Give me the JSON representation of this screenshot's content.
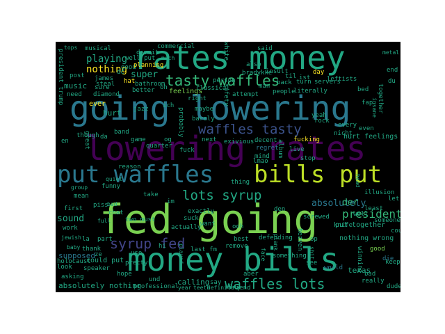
{
  "words": [
    {
      "text": "fed going",
      "color": "#7ad151"
    },
    {
      "text": "money bills",
      "color": "#22a884"
    },
    {
      "text": "going lowering",
      "color": "#2a788e"
    },
    {
      "text": "lowering rates",
      "color": "#440154"
    },
    {
      "text": "rates money",
      "color": "#22a884"
    },
    {
      "text": "put waffles",
      "color": "#2a788e"
    },
    {
      "text": "bills put",
      "color": "#bddf26"
    },
    {
      "text": "tasty waffles",
      "color": "#35b779"
    },
    {
      "text": "waffles tasty",
      "color": "#3b528b"
    },
    {
      "text": "waffles lots",
      "color": "#22a884"
    },
    {
      "text": "lots syrup",
      "color": "#22a884"
    },
    {
      "text": "syrup fed",
      "color": "#414487"
    },
    {
      "text": "president",
      "color": "#35b779"
    },
    {
      "text": "absolutely",
      "color": "#2a788e"
    },
    {
      "text": "nothing",
      "color": "#fde725"
    },
    {
      "text": "playing",
      "color": "#22a884"
    },
    {
      "text": "super",
      "color": "#22a884"
    },
    {
      "text": "music",
      "color": "#22a884"
    },
    {
      "text": "sound",
      "color": "#22a884"
    },
    {
      "text": "der",
      "color": "#35b779"
    },
    {
      "text": "ever",
      "color": "#fde725"
    },
    {
      "text": "hurt",
      "color": "#22a884"
    },
    {
      "text": "hurt feelings",
      "color": "#22a884"
    },
    {
      "text": "feelings",
      "color": "#7ad151"
    },
    {
      "text": "absolutely nothing",
      "color": "#22a884"
    },
    {
      "text": "calling",
      "color": "#22a884"
    },
    {
      "text": "supposed",
      "color": "#2a788e"
    },
    {
      "text": "could put",
      "color": "#22a884"
    },
    {
      "text": "put together",
      "color": "#22a884"
    },
    {
      "text": "nothing wrong",
      "color": "#22a884"
    },
    {
      "text": "texas",
      "color": "#22a884"
    },
    {
      "text": "good",
      "color": "#7ad151"
    },
    {
      "text": "die",
      "color": "#2a788e"
    },
    {
      "text": "world",
      "color": "#2a788e"
    },
    {
      "text": "see",
      "color": "#22a884"
    },
    {
      "text": "aber",
      "color": "#22a884"
    },
    {
      "text": "friend",
      "color": "#22a884"
    },
    {
      "text": "best",
      "color": "#22a884"
    },
    {
      "text": "ooh",
      "color": "#22a884"
    },
    {
      "text": "thing",
      "color": "#22a884"
    },
    {
      "text": "want",
      "color": "#22a884"
    },
    {
      "text": "mind",
      "color": "#22a884"
    },
    {
      "text": "stop",
      "color": "#22a884"
    },
    {
      "text": "live",
      "color": "#22a884"
    },
    {
      "text": "regret",
      "color": "#2a788e"
    },
    {
      "text": "fuck",
      "color": "#22a884"
    },
    {
      "text": "take",
      "color": "#22a884"
    },
    {
      "text": "chat",
      "color": "#22a884"
    },
    {
      "text": "mean",
      "color": "#22a884"
    },
    {
      "text": "work",
      "color": "#22a884"
    },
    {
      "text": "first",
      "color": "#22a884"
    },
    {
      "text": "piss",
      "color": "#22a884"
    },
    {
      "text": "use",
      "color": "#22a884"
    },
    {
      "text": "part",
      "color": "#22a884"
    },
    {
      "text": "look",
      "color": "#22a884"
    },
    {
      "text": "thank",
      "color": "#22a884"
    },
    {
      "text": "hope",
      "color": "#22a884"
    },
    {
      "text": "und",
      "color": "#22a884"
    },
    {
      "text": "say",
      "color": "#22a884"
    },
    {
      "text": "last fm",
      "color": "#22a884"
    },
    {
      "text": "exactly",
      "color": "#22a884"
    },
    {
      "text": "actually",
      "color": "#22a884"
    },
    {
      "text": "holocaust",
      "color": "#22a884"
    },
    {
      "text": "speaker",
      "color": "#22a884"
    },
    {
      "text": "asking",
      "color": "#22a884"
    },
    {
      "text": "pretty",
      "color": "#22a884"
    },
    {
      "text": "professional",
      "color": "#22a884"
    },
    {
      "text": "sure",
      "color": "#22a884"
    },
    {
      "text": "good",
      "color": "#22a884"
    },
    {
      "text": "game",
      "color": "#22a884"
    },
    {
      "text": "band",
      "color": "#22a884"
    },
    {
      "text": "jazz",
      "color": "#22a884"
    },
    {
      "text": "og",
      "color": "#22a884"
    },
    {
      "text": "though",
      "color": "#22a884"
    },
    {
      "text": "quarter",
      "color": "#22a884"
    },
    {
      "text": "hat",
      "color": "#fde725"
    },
    {
      "text": "better",
      "color": "#22a884"
    },
    {
      "text": "right",
      "color": "#22a884"
    },
    {
      "text": "maybe",
      "color": "#22a884"
    },
    {
      "text": "barely",
      "color": "#22a884"
    },
    {
      "text": "need",
      "color": "#22a884"
    },
    {
      "text": "diamond",
      "color": "#22a884"
    },
    {
      "text": "james",
      "color": "#22a884"
    },
    {
      "text": "steal",
      "color": "#22a884"
    },
    {
      "text": "bathroom",
      "color": "#22a884"
    },
    {
      "text": "post",
      "color": "#22a884"
    },
    {
      "text": "well put",
      "color": "#22a884"
    },
    {
      "text": "planning",
      "color": "#fde725"
    },
    {
      "text": "musical",
      "color": "#22a884"
    },
    {
      "text": "dammit",
      "color": "#22a884"
    },
    {
      "text": "commercial",
      "color": "#22a884"
    },
    {
      "text": "said",
      "color": "#22a884"
    },
    {
      "text": "also",
      "color": "#22a884"
    },
    {
      "text": "insult",
      "color": "#22a884"
    },
    {
      "text": "bradykke",
      "color": "#22a884"
    },
    {
      "text": "classical",
      "color": "#22a884"
    },
    {
      "text": "person",
      "color": "#22a884"
    },
    {
      "text": "man",
      "color": "#22a884"
    },
    {
      "text": "attempt",
      "color": "#22a884"
    },
    {
      "text": "day",
      "color": "#fde725"
    },
    {
      "text": "til",
      "color": "#22a884"
    },
    {
      "text": "ist",
      "color": "#22a884"
    },
    {
      "text": "servers",
      "color": "#22a884"
    },
    {
      "text": "turn",
      "color": "#22a884"
    },
    {
      "text": "back",
      "color": "#22a884"
    },
    {
      "text": "leftists",
      "color": "#22a884"
    },
    {
      "text": "literally",
      "color": "#22a884"
    },
    {
      "text": "people",
      "color": "#22a884"
    },
    {
      "text": "bed",
      "color": "#22a884"
    },
    {
      "text": "fap",
      "color": "#22a884"
    },
    {
      "text": "yeah",
      "color": "#22a884"
    },
    {
      "text": "rock",
      "color": "#22a884"
    },
    {
      "text": "every",
      "color": "#22a884"
    },
    {
      "text": "nicht",
      "color": "#22a884"
    },
    {
      "text": "even",
      "color": "#22a884"
    },
    {
      "text": "fucking",
      "color": "#fde725"
    },
    {
      "text": "decent",
      "color": "#22a884"
    },
    {
      "text": "next",
      "color": "#22a884"
    },
    {
      "text": "exivious",
      "color": "#22a884"
    },
    {
      "text": "lmao",
      "color": "#22a884"
    },
    {
      "text": "illusion",
      "color": "#22a884"
    },
    {
      "text": "let",
      "color": "#22a884"
    },
    {
      "text": "least",
      "color": "#22a884"
    },
    {
      "text": "someone",
      "color": "#22a884"
    },
    {
      "text": "screwed",
      "color": "#22a884"
    },
    {
      "text": "knife",
      "color": "#22a884"
    },
    {
      "text": "well",
      "color": "#22a884"
    },
    {
      "text": "den",
      "color": "#22a884"
    },
    {
      "text": "op",
      "color": "#22a884"
    },
    {
      "text": "defending",
      "color": "#22a884"
    },
    {
      "text": "remove",
      "color": "#22a884"
    },
    {
      "text": "something",
      "color": "#22a884"
    },
    {
      "text": "keep",
      "color": "#22a884"
    },
    {
      "text": "bad",
      "color": "#22a884"
    },
    {
      "text": "really",
      "color": "#22a884"
    },
    {
      "text": "dude",
      "color": "#22a884"
    },
    {
      "text": "definitely",
      "color": "#22a884"
    },
    {
      "text": "teeth",
      "color": "#22a884"
    },
    {
      "text": "year",
      "color": "#22a884"
    },
    {
      "text": "could",
      "color": "#22a884"
    },
    {
      "text": "im",
      "color": "#22a884"
    },
    {
      "text": "two must",
      "color": "#22a884"
    },
    {
      "text": "funny",
      "color": "#22a884"
    },
    {
      "text": "quiet",
      "color": "#22a884"
    },
    {
      "text": "suck",
      "color": "#22a884"
    },
    {
      "text": "reason",
      "color": "#22a884"
    },
    {
      "text": "la",
      "color": "#22a884"
    },
    {
      "text": "hi",
      "color": "#22a884"
    },
    {
      "text": "ze",
      "color": "#22a884"
    },
    {
      "text": "baby",
      "color": "#22a884"
    },
    {
      "text": "full",
      "color": "#22a884"
    },
    {
      "text": "jewish",
      "color": "#22a884"
    },
    {
      "text": "group",
      "color": "#22a884"
    },
    {
      "text": "bad",
      "color": "#22a884"
    },
    {
      "text": "tops",
      "color": "#22a884"
    },
    {
      "text": "dc",
      "color": "#22a884"
    },
    {
      "text": "oh",
      "color": "#22a884"
    },
    {
      "text": "ich",
      "color": "#22a884"
    },
    {
      "text": "da",
      "color": "#22a884"
    },
    {
      "text": "en",
      "color": "#22a884"
    },
    {
      "text": "end",
      "color": "#22a884"
    },
    {
      "text": "du",
      "color": "#22a884"
    },
    {
      "text": "metal",
      "color": "#22a884"
    },
    {
      "text": "much",
      "color": "#22a884"
    },
    {
      "text": "safety",
      "color": "#22a884"
    },
    {
      "text": "president trump",
      "color": "#22a884"
    },
    {
      "text": "great",
      "color": "#22a884"
    },
    {
      "text": "white",
      "color": "#22a884"
    },
    {
      "text": "probably",
      "color": "#22a884"
    },
    {
      "text": "album",
      "color": "#22a884"
    },
    {
      "text": "head",
      "color": "#22a884"
    },
    {
      "text": "heaven",
      "color": "#22a884"
    },
    {
      "text": "played",
      "color": "#22a884"
    },
    {
      "text": "winning",
      "color": "#22a884"
    },
    {
      "text": "together",
      "color": "#22a884"
    },
    {
      "text": "insane",
      "color": "#22a884"
    },
    {
      "text": "shit",
      "color": "#22a884"
    },
    {
      "text": "face",
      "color": "#22a884"
    },
    {
      "text": "plank",
      "color": "#22a884"
    }
  ]
}
